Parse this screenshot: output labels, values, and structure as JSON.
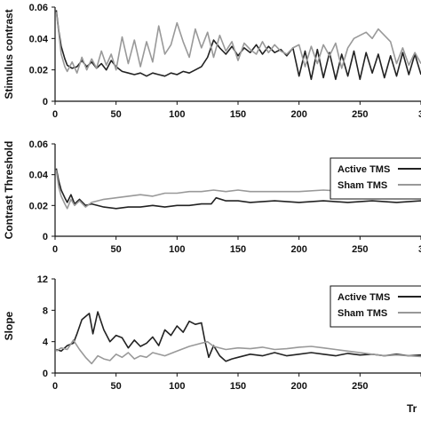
{
  "chart_data": [
    {
      "type": "line",
      "ylabel": "Stimulus contrast",
      "xlim": [
        0,
        300
      ],
      "ylim": [
        0,
        0.06
      ],
      "xticks": [
        "0",
        "50",
        "100",
        "150",
        "200",
        "250",
        "3"
      ],
      "yticks": [
        "0",
        "0.02",
        "0.04",
        "0.06"
      ],
      "legend": false,
      "series": [
        {
          "color": "#222222",
          "x": [
            1,
            3,
            5,
            8,
            10,
            14,
            18,
            22,
            26,
            30,
            34,
            38,
            42,
            46,
            50,
            55,
            60,
            65,
            70,
            75,
            80,
            85,
            90,
            95,
            100,
            105,
            110,
            115,
            120,
            125,
            130,
            135,
            140,
            145,
            150,
            155,
            160,
            165,
            170,
            175,
            180,
            185,
            190,
            195,
            200,
            205,
            210,
            215,
            220,
            225,
            230,
            235,
            240,
            245,
            250,
            255,
            260,
            265,
            270,
            275,
            280,
            285,
            290,
            295,
            300
          ],
          "values": [
            0.058,
            0.045,
            0.035,
            0.027,
            0.023,
            0.021,
            0.022,
            0.026,
            0.022,
            0.025,
            0.021,
            0.024,
            0.02,
            0.026,
            0.022,
            0.019,
            0.018,
            0.017,
            0.018,
            0.016,
            0.018,
            0.017,
            0.016,
            0.018,
            0.017,
            0.019,
            0.018,
            0.02,
            0.022,
            0.028,
            0.039,
            0.034,
            0.03,
            0.035,
            0.029,
            0.034,
            0.031,
            0.036,
            0.03,
            0.035,
            0.031,
            0.033,
            0.029,
            0.034,
            0.016,
            0.032,
            0.014,
            0.033,
            0.015,
            0.031,
            0.014,
            0.03,
            0.016,
            0.032,
            0.014,
            0.031,
            0.018,
            0.03,
            0.015,
            0.029,
            0.016,
            0.031,
            0.017,
            0.03,
            0.017
          ]
        },
        {
          "color": "#999999",
          "x": [
            1,
            3,
            5,
            8,
            10,
            14,
            18,
            22,
            26,
            30,
            34,
            38,
            42,
            46,
            50,
            55,
            60,
            65,
            70,
            75,
            80,
            85,
            90,
            95,
            100,
            105,
            110,
            115,
            120,
            125,
            130,
            135,
            140,
            145,
            150,
            155,
            160,
            165,
            170,
            175,
            180,
            185,
            190,
            195,
            200,
            205,
            210,
            215,
            220,
            225,
            230,
            235,
            240,
            245,
            250,
            255,
            260,
            265,
            270,
            275,
            280,
            285,
            290,
            295,
            300
          ],
          "values": [
            0.057,
            0.044,
            0.03,
            0.022,
            0.019,
            0.025,
            0.018,
            0.028,
            0.02,
            0.027,
            0.021,
            0.032,
            0.023,
            0.03,
            0.02,
            0.041,
            0.024,
            0.039,
            0.022,
            0.038,
            0.025,
            0.048,
            0.03,
            0.036,
            0.05,
            0.038,
            0.028,
            0.046,
            0.034,
            0.044,
            0.028,
            0.042,
            0.032,
            0.038,
            0.026,
            0.037,
            0.033,
            0.03,
            0.038,
            0.031,
            0.036,
            0.032,
            0.03,
            0.034,
            0.036,
            0.022,
            0.035,
            0.024,
            0.036,
            0.029,
            0.037,
            0.021,
            0.034,
            0.04,
            0.042,
            0.044,
            0.04,
            0.046,
            0.042,
            0.038,
            0.024,
            0.034,
            0.023,
            0.031,
            0.024
          ]
        }
      ]
    },
    {
      "type": "line",
      "ylabel": "Contrast Threshold",
      "xlim": [
        0,
        300
      ],
      "ylim": [
        0,
        0.06
      ],
      "xticks": [
        "0",
        "50",
        "100",
        "150",
        "200",
        "250",
        "3"
      ],
      "yticks": [
        "0",
        "0.02",
        "0.04",
        "0.06"
      ],
      "legend": true,
      "legend_position": "right",
      "series": [
        {
          "name": "Active TMS",
          "color": "#222222",
          "x": [
            1,
            3,
            5,
            8,
            10,
            13,
            16,
            20,
            25,
            30,
            40,
            50,
            60,
            70,
            80,
            90,
            100,
            110,
            120,
            128,
            132,
            140,
            150,
            160,
            180,
            200,
            220,
            240,
            260,
            280,
            300
          ],
          "values": [
            0.044,
            0.036,
            0.03,
            0.025,
            0.022,
            0.027,
            0.021,
            0.024,
            0.02,
            0.021,
            0.019,
            0.018,
            0.019,
            0.019,
            0.02,
            0.019,
            0.02,
            0.02,
            0.021,
            0.021,
            0.025,
            0.023,
            0.023,
            0.022,
            0.023,
            0.022,
            0.023,
            0.022,
            0.023,
            0.022,
            0.023
          ]
        },
        {
          "name": "Sham TMS",
          "color": "#999999",
          "x": [
            1,
            3,
            5,
            8,
            10,
            13,
            16,
            20,
            25,
            30,
            40,
            50,
            60,
            70,
            80,
            90,
            100,
            110,
            120,
            130,
            140,
            150,
            160,
            180,
            200,
            220,
            240,
            260,
            280,
            300
          ],
          "values": [
            0.043,
            0.032,
            0.026,
            0.021,
            0.018,
            0.024,
            0.02,
            0.023,
            0.019,
            0.022,
            0.024,
            0.025,
            0.026,
            0.027,
            0.026,
            0.028,
            0.028,
            0.029,
            0.029,
            0.03,
            0.029,
            0.03,
            0.029,
            0.029,
            0.029,
            0.03,
            0.029,
            0.029,
            0.029,
            0.029
          ]
        }
      ]
    },
    {
      "type": "line",
      "ylabel": "Slope",
      "xlabel": "Tr",
      "xlim": [
        0,
        300
      ],
      "ylim": [
        0,
        12
      ],
      "xticks": [
        "0",
        "50",
        "100",
        "150",
        "200",
        "250",
        ""
      ],
      "yticks": [
        "0",
        "4",
        "8",
        "12"
      ],
      "legend": true,
      "legend_position": "right",
      "series": [
        {
          "name": "Active TMS",
          "color": "#222222",
          "x": [
            1,
            5,
            10,
            15,
            18,
            22,
            25,
            28,
            31,
            35,
            40,
            45,
            50,
            55,
            60,
            65,
            70,
            75,
            80,
            85,
            90,
            95,
            100,
            105,
            110,
            115,
            120,
            123,
            126,
            130,
            135,
            140,
            145,
            150,
            160,
            170,
            180,
            190,
            200,
            210,
            220,
            230,
            240,
            250,
            260,
            270,
            280,
            290,
            300
          ],
          "values": [
            3.0,
            2.8,
            3.5,
            3.8,
            5.0,
            6.8,
            7.2,
            7.6,
            5.0,
            7.8,
            5.5,
            4.0,
            4.8,
            4.5,
            3.2,
            4.2,
            3.4,
            3.8,
            4.6,
            3.5,
            5.5,
            4.8,
            6.0,
            5.2,
            6.6,
            6.2,
            6.4,
            4.0,
            2.0,
            3.5,
            2.2,
            1.5,
            1.8,
            2.0,
            2.4,
            2.2,
            2.6,
            2.2,
            2.4,
            2.6,
            2.4,
            2.2,
            2.5,
            2.3,
            2.4,
            2.2,
            2.4,
            2.2,
            2.3
          ]
        },
        {
          "name": "Sham TMS",
          "color": "#999999",
          "x": [
            1,
            5,
            10,
            15,
            20,
            25,
            30,
            35,
            40,
            45,
            50,
            55,
            60,
            65,
            70,
            75,
            80,
            90,
            100,
            110,
            120,
            125,
            130,
            140,
            150,
            160,
            170,
            180,
            190,
            200,
            210,
            220,
            230,
            240,
            250,
            260,
            270,
            280,
            290,
            300
          ],
          "values": [
            2.8,
            3.2,
            3.0,
            4.2,
            3.0,
            2.0,
            1.2,
            2.2,
            1.8,
            1.6,
            2.4,
            2.0,
            2.6,
            1.8,
            2.2,
            2.0,
            2.6,
            2.2,
            2.8,
            3.4,
            3.8,
            4.0,
            3.4,
            3.0,
            3.2,
            3.1,
            3.3,
            3.0,
            3.1,
            3.3,
            3.4,
            3.2,
            3.0,
            2.8,
            2.6,
            2.4,
            2.2,
            2.3,
            2.2,
            2.1
          ]
        }
      ]
    }
  ]
}
